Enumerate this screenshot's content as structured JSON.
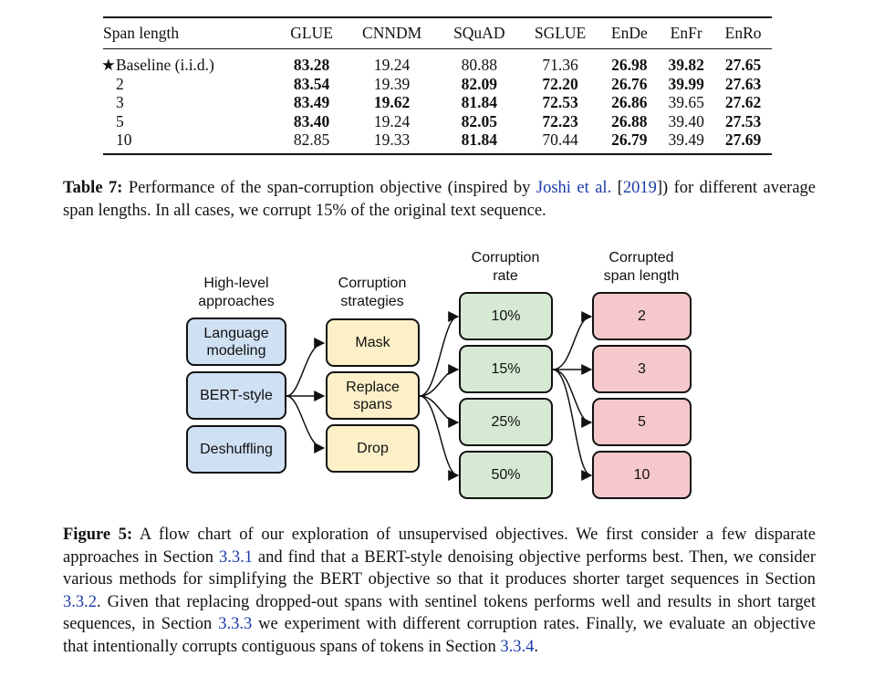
{
  "table": {
    "columns": [
      "Span length",
      "GLUE",
      "CNNDM",
      "SQuAD",
      "SGLUE",
      "EnDe",
      "EnFr",
      "EnRo"
    ],
    "star": "★",
    "rows": [
      {
        "label": "Baseline (i.i.d.)",
        "starred": true,
        "cells": [
          {
            "v": "83.28",
            "b": true
          },
          {
            "v": "19.24",
            "b": false
          },
          {
            "v": "80.88",
            "b": false
          },
          {
            "v": "71.36",
            "b": false
          },
          {
            "v": "26.98",
            "b": true
          },
          {
            "v": "39.82",
            "b": true
          },
          {
            "v": "27.65",
            "b": true
          }
        ]
      },
      {
        "label": "2",
        "starred": false,
        "cells": [
          {
            "v": "83.54",
            "b": true
          },
          {
            "v": "19.39",
            "b": false
          },
          {
            "v": "82.09",
            "b": true
          },
          {
            "v": "72.20",
            "b": true
          },
          {
            "v": "26.76",
            "b": true
          },
          {
            "v": "39.99",
            "b": true
          },
          {
            "v": "27.63",
            "b": true
          }
        ]
      },
      {
        "label": "3",
        "starred": false,
        "cells": [
          {
            "v": "83.49",
            "b": true
          },
          {
            "v": "19.62",
            "b": true
          },
          {
            "v": "81.84",
            "b": true
          },
          {
            "v": "72.53",
            "b": true
          },
          {
            "v": "26.86",
            "b": true
          },
          {
            "v": "39.65",
            "b": false
          },
          {
            "v": "27.62",
            "b": true
          }
        ]
      },
      {
        "label": "5",
        "starred": false,
        "cells": [
          {
            "v": "83.40",
            "b": true
          },
          {
            "v": "19.24",
            "b": false
          },
          {
            "v": "82.05",
            "b": true
          },
          {
            "v": "72.23",
            "b": true
          },
          {
            "v": "26.88",
            "b": true
          },
          {
            "v": "39.40",
            "b": false
          },
          {
            "v": "27.53",
            "b": true
          }
        ]
      },
      {
        "label": "10",
        "starred": false,
        "cells": [
          {
            "v": "82.85",
            "b": false
          },
          {
            "v": "19.33",
            "b": false
          },
          {
            "v": "81.84",
            "b": true
          },
          {
            "v": "70.44",
            "b": false
          },
          {
            "v": "26.79",
            "b": true
          },
          {
            "v": "39.49",
            "b": false
          },
          {
            "v": "27.69",
            "b": true
          }
        ]
      }
    ]
  },
  "table_caption": {
    "label": "Table 7:",
    "text_before": " Performance of the span-corruption objective (inspired by ",
    "cite_author": "Joshi et al.",
    "cite_open": " [",
    "cite_year": "2019",
    "cite_close": "]",
    "text_after": ") for different average span lengths. In all cases, we corrupt 15% of the original text sequence."
  },
  "flowchart": {
    "headers": {
      "approaches": [
        "High-level",
        "approaches"
      ],
      "strategies": [
        "Corruption",
        "strategies"
      ],
      "rate": [
        "Corruption",
        "rate"
      ],
      "span": [
        "Corrupted",
        "span length"
      ]
    },
    "approaches": [
      [
        "Language",
        "modeling"
      ],
      [
        "BERT-style"
      ],
      [
        "Deshuffling"
      ]
    ],
    "strategies": [
      [
        "Mask"
      ],
      [
        "Replace",
        "spans"
      ],
      [
        "Drop"
      ]
    ],
    "rates": [
      "10%",
      "15%",
      "25%",
      "50%"
    ],
    "span_lengths": [
      "2",
      "3",
      "5",
      "10"
    ],
    "colors": {
      "approach": "#cfe0f3",
      "strategy": "#fdf0c8",
      "rate": "#d6ead3",
      "span": "#f5c9cc",
      "stroke": "#111111"
    }
  },
  "figure_caption": {
    "label": "Figure 5:",
    "t1": " A flow chart of our exploration of unsupervised objectives. We first consider a few disparate approaches in Section ",
    "ref1": "3.3.1",
    "t2": " and find that a BERT-style denoising objective performs best. Then, we consider various methods for simplifying the BERT objective so that it produces shorter target sequences in Section ",
    "ref2": "3.3.2",
    "t3": ". Given that replacing dropped-out spans with sentinel tokens performs well and results in short target sequences, in Section ",
    "ref3": "3.3.3",
    "t4": " we experiment with different corruption rates. Finally, we evaluate an objective that intentionally corrupts contiguous spans of tokens in Section ",
    "ref4": "3.3.4",
    "t5": "."
  }
}
